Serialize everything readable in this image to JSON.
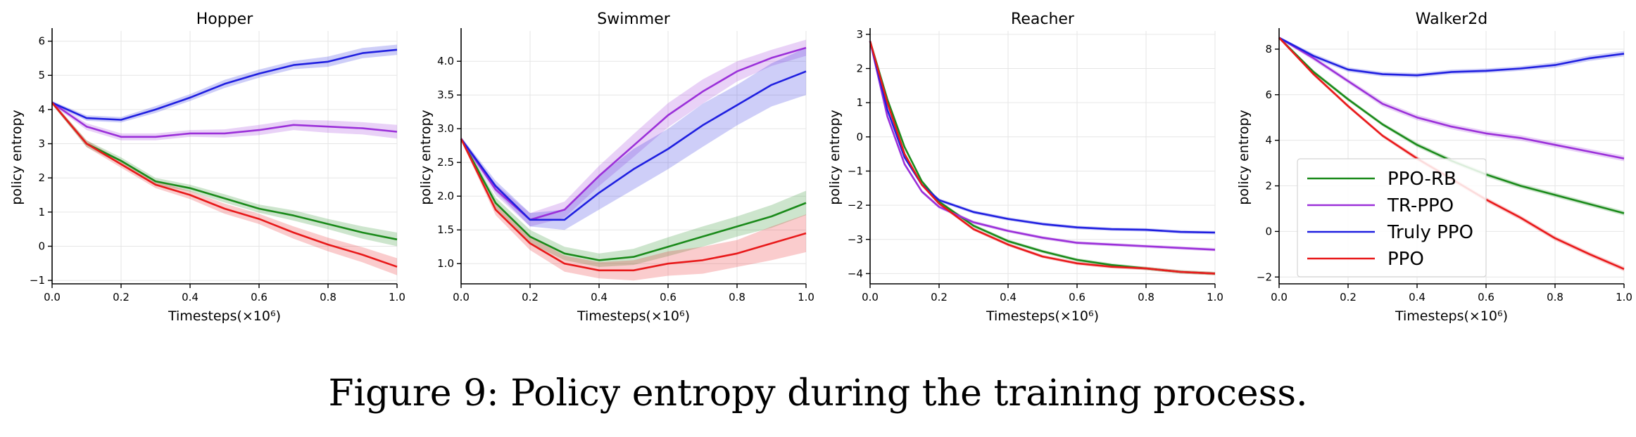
{
  "caption": "Figure 9: Policy entropy during the training process.",
  "colors": {
    "PPO-RB": "#1a8a1a",
    "TR-PPO": "#9b30d9",
    "Truly PPO": "#1f1fe0",
    "PPO": "#e8191a"
  },
  "legend": [
    "PPO-RB",
    "TR-PPO",
    "Truly PPO",
    "PPO"
  ],
  "chart_data": [
    {
      "type": "line",
      "title": "Hopper",
      "xlabel": "Timesteps(×10⁶)",
      "ylabel": "policy entropy",
      "xlim": [
        0,
        1
      ],
      "ylim": [
        -1.1,
        6.3
      ],
      "xticks": [
        "0.0",
        "0.2",
        "0.4",
        "0.6",
        "0.8",
        "1.0"
      ],
      "yticks": [
        -1,
        0,
        1,
        2,
        3,
        4,
        5,
        6
      ],
      "x": [
        0,
        0.1,
        0.2,
        0.3,
        0.4,
        0.5,
        0.6,
        0.7,
        0.8,
        0.9,
        1.0
      ],
      "series": [
        {
          "name": "PPO-RB",
          "values": [
            4.2,
            3.0,
            2.5,
            1.9,
            1.7,
            1.4,
            1.1,
            0.9,
            0.65,
            0.4,
            0.2
          ],
          "band": [
            0.05,
            0.1,
            0.1,
            0.1,
            0.1,
            0.12,
            0.12,
            0.15,
            0.15,
            0.18,
            0.2
          ]
        },
        {
          "name": "TR-PPO",
          "values": [
            4.2,
            3.5,
            3.2,
            3.2,
            3.3,
            3.3,
            3.4,
            3.55,
            3.5,
            3.45,
            3.35
          ],
          "band": [
            0.05,
            0.1,
            0.1,
            0.1,
            0.1,
            0.12,
            0.15,
            0.15,
            0.18,
            0.18,
            0.2
          ]
        },
        {
          "name": "Truly PPO",
          "values": [
            4.2,
            3.75,
            3.7,
            4.0,
            4.35,
            4.75,
            5.05,
            5.3,
            5.4,
            5.65,
            5.75
          ],
          "band": [
            0.05,
            0.08,
            0.08,
            0.1,
            0.1,
            0.12,
            0.12,
            0.12,
            0.15,
            0.15,
            0.15
          ]
        },
        {
          "name": "PPO",
          "values": [
            4.2,
            3.0,
            2.4,
            1.8,
            1.5,
            1.1,
            0.8,
            0.4,
            0.05,
            -0.25,
            -0.6
          ],
          "band": [
            0.05,
            0.1,
            0.1,
            0.1,
            0.12,
            0.15,
            0.15,
            0.18,
            0.2,
            0.22,
            0.25
          ]
        }
      ]
    },
    {
      "type": "line",
      "title": "Swimmer",
      "xlabel": "Timesteps(×10⁶)",
      "ylabel": "policy entropy",
      "xlim": [
        0,
        1
      ],
      "ylim": [
        0.7,
        4.45
      ],
      "xticks": [
        "0.0",
        "0.2",
        "0.4",
        "0.6",
        "0.8",
        "1.0"
      ],
      "yticks": [
        1.0,
        1.5,
        2.0,
        2.5,
        3.0,
        3.5,
        4.0
      ],
      "x": [
        0,
        0.1,
        0.2,
        0.3,
        0.4,
        0.5,
        0.6,
        0.7,
        0.8,
        0.9,
        1.0
      ],
      "series": [
        {
          "name": "PPO-RB",
          "values": [
            2.85,
            1.9,
            1.4,
            1.15,
            1.05,
            1.1,
            1.25,
            1.4,
            1.55,
            1.7,
            1.9
          ],
          "band": [
            0.03,
            0.08,
            0.1,
            0.1,
            0.1,
            0.12,
            0.14,
            0.15,
            0.15,
            0.17,
            0.18
          ]
        },
        {
          "name": "TR-PPO",
          "values": [
            2.85,
            2.1,
            1.65,
            1.8,
            2.3,
            2.75,
            3.2,
            3.55,
            3.85,
            4.05,
            4.2
          ],
          "band": [
            0.03,
            0.08,
            0.1,
            0.12,
            0.15,
            0.17,
            0.18,
            0.18,
            0.15,
            0.12,
            0.12
          ]
        },
        {
          "name": "Truly PPO",
          "values": [
            2.85,
            2.15,
            1.65,
            1.65,
            2.05,
            2.4,
            2.7,
            3.05,
            3.35,
            3.65,
            3.85
          ],
          "band": [
            0.03,
            0.08,
            0.1,
            0.15,
            0.25,
            0.3,
            0.3,
            0.32,
            0.3,
            0.32,
            0.35
          ]
        },
        {
          "name": "PPO",
          "values": [
            2.85,
            1.8,
            1.3,
            1.0,
            0.9,
            0.9,
            1.0,
            1.05,
            1.15,
            1.3,
            1.45
          ],
          "band": [
            0.03,
            0.08,
            0.1,
            0.12,
            0.12,
            0.15,
            0.18,
            0.2,
            0.2,
            0.25,
            0.28
          ]
        }
      ]
    },
    {
      "type": "line",
      "title": "Reacher",
      "xlabel": "Timesteps(×10⁶)",
      "ylabel": "policy entropy",
      "xlim": [
        0,
        1
      ],
      "ylim": [
        -4.3,
        3.1
      ],
      "xticks": [
        "0.0",
        "0.2",
        "0.4",
        "0.6",
        "0.8",
        "1.0"
      ],
      "yticks": [
        -4,
        -3,
        -2,
        -1,
        0,
        1,
        2,
        3
      ],
      "x": [
        0,
        0.05,
        0.1,
        0.15,
        0.2,
        0.3,
        0.4,
        0.5,
        0.6,
        0.7,
        0.8,
        0.9,
        1.0
      ],
      "series": [
        {
          "name": "PPO-RB",
          "values": [
            2.8,
            1.1,
            -0.3,
            -1.3,
            -1.9,
            -2.6,
            -3.05,
            -3.35,
            -3.6,
            -3.75,
            -3.85,
            -3.95,
            -4.0
          ],
          "band": [
            0.02,
            0.05,
            0.05,
            0.05,
            0.05,
            0.05,
            0.05,
            0.05,
            0.05,
            0.05,
            0.05,
            0.05,
            0.05
          ]
        },
        {
          "name": "TR-PPO",
          "values": [
            2.8,
            0.6,
            -0.8,
            -1.6,
            -2.05,
            -2.5,
            -2.75,
            -2.95,
            -3.1,
            -3.15,
            -3.2,
            -3.25,
            -3.3
          ],
          "band": [
            0.02,
            0.05,
            0.05,
            0.05,
            0.05,
            0.05,
            0.05,
            0.05,
            0.05,
            0.05,
            0.05,
            0.05,
            0.05
          ]
        },
        {
          "name": "Truly PPO",
          "values": [
            2.8,
            0.8,
            -0.6,
            -1.4,
            -1.85,
            -2.2,
            -2.4,
            -2.55,
            -2.65,
            -2.7,
            -2.72,
            -2.78,
            -2.8
          ],
          "band": [
            0.02,
            0.05,
            0.05,
            0.05,
            0.05,
            0.05,
            0.05,
            0.05,
            0.05,
            0.05,
            0.05,
            0.05,
            0.05
          ]
        },
        {
          "name": "PPO",
          "values": [
            2.8,
            1.0,
            -0.5,
            -1.4,
            -1.95,
            -2.7,
            -3.15,
            -3.5,
            -3.7,
            -3.8,
            -3.85,
            -3.95,
            -4.0
          ],
          "band": [
            0.02,
            0.05,
            0.05,
            0.05,
            0.05,
            0.05,
            0.05,
            0.05,
            0.05,
            0.05,
            0.05,
            0.05,
            0.05
          ]
        }
      ]
    },
    {
      "type": "line",
      "title": "Walker2d",
      "xlabel": "Timesteps(×10⁶)",
      "ylabel": "policy entropy",
      "xlim": [
        0,
        1
      ],
      "ylim": [
        -2.3,
        8.8
      ],
      "xticks": [
        "0.0",
        "0.2",
        "0.4",
        "0.6",
        "0.8",
        "1.0"
      ],
      "yticks": [
        -2,
        0,
        2,
        4,
        6,
        8
      ],
      "x": [
        0,
        0.1,
        0.2,
        0.3,
        0.4,
        0.5,
        0.6,
        0.7,
        0.8,
        0.9,
        1.0
      ],
      "series": [
        {
          "name": "PPO-RB",
          "values": [
            8.5,
            7.0,
            5.8,
            4.7,
            3.8,
            3.1,
            2.5,
            2.0,
            1.6,
            1.2,
            0.8
          ],
          "band": [
            0.05,
            0.08,
            0.08,
            0.08,
            0.1,
            0.1,
            0.1,
            0.1,
            0.1,
            0.1,
            0.1
          ]
        },
        {
          "name": "TR-PPO",
          "values": [
            8.5,
            7.6,
            6.6,
            5.6,
            5.0,
            4.6,
            4.3,
            4.1,
            3.8,
            3.5,
            3.2
          ],
          "band": [
            0.05,
            0.1,
            0.1,
            0.12,
            0.12,
            0.12,
            0.12,
            0.12,
            0.12,
            0.12,
            0.12
          ]
        },
        {
          "name": "Truly PPO",
          "values": [
            8.5,
            7.7,
            7.1,
            6.9,
            6.85,
            7.0,
            7.05,
            7.15,
            7.3,
            7.6,
            7.8
          ],
          "band": [
            0.05,
            0.1,
            0.1,
            0.1,
            0.1,
            0.1,
            0.1,
            0.1,
            0.12,
            0.12,
            0.12
          ]
        },
        {
          "name": "PPO",
          "values": [
            8.5,
            6.9,
            5.5,
            4.2,
            3.2,
            2.3,
            1.4,
            0.6,
            -0.3,
            -1.0,
            -1.65
          ],
          "band": [
            0.05,
            0.08,
            0.08,
            0.08,
            0.1,
            0.1,
            0.1,
            0.1,
            0.1,
            0.1,
            0.1
          ]
        }
      ]
    }
  ]
}
